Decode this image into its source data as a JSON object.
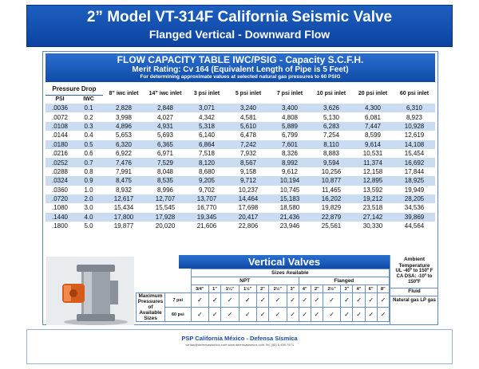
{
  "header": {
    "title": "2” Model VT-314F California Seismic Valve",
    "subtitle": "Flanged Vertical - Downward Flow"
  },
  "flow": {
    "title": "FLOW CAPACITY TABLE IWC/PSIG - Capacity S.C.F.H.",
    "rating": "Merit Rating: Cv 164 (Equivalent Length of Pipe is 5 Feet)",
    "note": "For determining approximate values at selected natural gas pressures to 60 PSIG",
    "pressure_drop_label": "Pressure Drop",
    "col_psi": "PSI",
    "col_iwc": "IWC",
    "columns": [
      "8” iwc inlet",
      "14” iwc inlet",
      "3 psi inlet",
      "5 psi inlet",
      "7 psi inlet",
      "10 psi inlet",
      "20 psi inlet",
      "60 psi inlet"
    ],
    "rows": [
      [
        ".0036",
        "0.1",
        "2,828",
        "2,848",
        "3,071",
        "3,240",
        "3,400",
        "3,626",
        "4,300",
        "6,310"
      ],
      [
        ".0072",
        "0.2",
        "3,998",
        "4,027",
        "4,342",
        "4,581",
        "4,808",
        "5,130",
        "6,081",
        "8,923"
      ],
      [
        ".0108",
        "0.3",
        "4,896",
        "4,931",
        "5,318",
        "5,610",
        "5,889",
        "6,283",
        "7,447",
        "10,928"
      ],
      [
        ".0144",
        "0.4",
        "5,653",
        "5,693",
        "6,140",
        "6,478",
        "6,799",
        "7,254",
        "8,599",
        "12,619"
      ],
      [
        ".0180",
        "0.5",
        "6,320",
        "6,365",
        "6,864",
        "7,242",
        "7,601",
        "8,110",
        "9,614",
        "14,108"
      ],
      [
        ".0216",
        "0.6",
        "6,922",
        "6,971",
        "7,518",
        "7,932",
        "8,326",
        "8,883",
        "10,531",
        "15,454"
      ],
      [
        ".0252",
        "0.7",
        "7,476",
        "7,529",
        "8,120",
        "8,567",
        "8,992",
        "9,594",
        "11,374",
        "16,692"
      ],
      [
        ".0288",
        "0.8",
        "7,991",
        "8,048",
        "8,680",
        "9,158",
        "9,612",
        "10,256",
        "12,158",
        "17,844"
      ],
      [
        ".0324",
        "0.9",
        "8,475",
        "8,535",
        "9,205",
        "9,712",
        "10,194",
        "10,877",
        "12,895",
        "18,925"
      ],
      [
        ".0360",
        "1.0",
        "8,932",
        "8,996",
        "9,702",
        "10,237",
        "10,745",
        "11,465",
        "13,592",
        "19,949"
      ],
      [
        ".0720",
        "2.0",
        "12,617",
        "12,707",
        "13,707",
        "14,464",
        "15,183",
        "16,202",
        "19,212",
        "28,205"
      ],
      [
        ".1080",
        "3.0",
        "15,434",
        "15,545",
        "16,770",
        "17,698",
        "18,580",
        "19,829",
        "23,518",
        "34,536"
      ],
      [
        ".1440",
        "4.0",
        "17,800",
        "17,928",
        "19,345",
        "20,417",
        "21,436",
        "22,879",
        "27,142",
        "39,869"
      ],
      [
        ".1800",
        "5.0",
        "19,877",
        "20,020",
        "21,606",
        "22,806",
        "23,946",
        "25,561",
        "30,330",
        "44,564"
      ]
    ]
  },
  "vertical": {
    "title": "Vertical Valves",
    "sizes_label": "Sizes Available",
    "npt_label": "NPT",
    "flanged_label": "Flanged",
    "npt_sizes": [
      "3/4”",
      "1”",
      "1¼”",
      "1½”",
      "2”"
    ],
    "flanged_sizes": [
      "2½”",
      "3”",
      "4”",
      "2”",
      "2½”",
      "3”",
      "4”",
      "6”",
      "8”"
    ],
    "max_label": "Maximum Pressures of Available Sizes",
    "rows": [
      {
        "label": "7 psi",
        "marks": [
          "✓",
          "✓",
          "✓",
          "✓",
          "✓",
          "✓",
          "✓",
          "✓",
          "✓",
          "✓",
          "✓",
          "✓",
          "✓",
          "✓"
        ]
      },
      {
        "label": "60 psi",
        "marks": [
          "✓",
          "✓",
          "✓",
          "✓",
          "✓",
          "✓",
          "✓",
          "✓",
          "✓",
          "✓",
          "✓",
          "✓",
          "✓",
          "✓"
        ]
      }
    ],
    "ambient_label": "Ambient Temperature",
    "ambient_ul": "UL -40º to 150º F",
    "ambient_ca": "CA DSA: -10º to 150ºF",
    "fluid_label": "Fluid",
    "fluid_value": "Natural gas LP gas"
  },
  "footer": {
    "company": "PSP California México  -  Defensa Sísmica",
    "contact": "ventas@defensasismica.com   www.defensasismica.com   Tel: (55) 5 456 7474"
  }
}
